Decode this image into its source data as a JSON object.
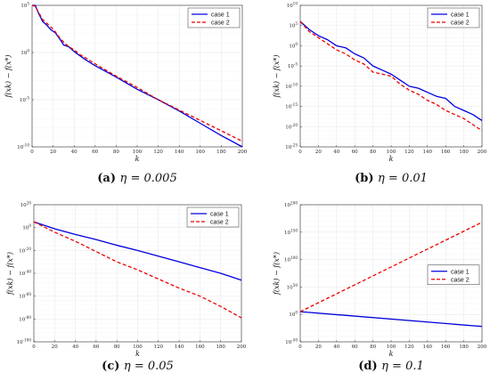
{
  "colors": {
    "case1": "#0000dd",
    "case2": "#ee0000"
  },
  "chart_data": [
    {
      "type": "line",
      "caption_tag": "(a)",
      "caption_text": "η = 0.005",
      "xlabel": "k",
      "ylabel": "f(xk) − f(x*)",
      "xlim": [
        0,
        200
      ],
      "yscale": "log",
      "ylim_exp": [
        -10,
        5
      ],
      "xticks": [
        "0",
        "20",
        "40",
        "60",
        "80",
        "100",
        "120",
        "140",
        "160",
        "180",
        "200"
      ],
      "yticks": [
        {
          "base": "10",
          "exp": "-10",
          "e": -10
        },
        {
          "base": "10",
          "exp": "-5",
          "e": -5
        },
        {
          "base": "10",
          "exp": "0",
          "e": 0
        },
        {
          "base": "10",
          "exp": "5",
          "e": 5
        }
      ],
      "legend_position": "top-right",
      "series": [
        {
          "name": "case 1",
          "style": "solid",
          "x": [
            0,
            3,
            6,
            10,
            14,
            18,
            22,
            26,
            30,
            35,
            40,
            45,
            50,
            60,
            80,
            100,
            120,
            140,
            160,
            180,
            200
          ],
          "y_exp": [
            5,
            5,
            4.2,
            3.3,
            2.9,
            2.4,
            2.1,
            1.5,
            0.8,
            0.6,
            0.1,
            -0.3,
            -0.7,
            -1.4,
            -2.6,
            -3.9,
            -5.0,
            -6.2,
            -7.5,
            -8.8,
            -10
          ]
        },
        {
          "name": "case 2",
          "style": "dashed",
          "x": [
            0,
            3,
            6,
            10,
            14,
            18,
            22,
            26,
            30,
            35,
            40,
            45,
            50,
            60,
            80,
            100,
            120,
            140,
            160,
            180,
            200
          ],
          "y_exp": [
            5,
            4.9,
            4.3,
            3.5,
            3.1,
            2.7,
            2.2,
            1.6,
            1.1,
            0.6,
            0.3,
            -0.2,
            -0.5,
            -1.2,
            -2.5,
            -3.7,
            -5.0,
            -6.1,
            -7.2,
            -8.3,
            -9.4
          ]
        }
      ]
    },
    {
      "type": "line",
      "caption_tag": "(b)",
      "caption_text": "η = 0.01",
      "xlabel": "k",
      "ylabel": "f(xk) − f(x*)",
      "xlim": [
        0,
        200
      ],
      "yscale": "log",
      "ylim_exp": [
        -25,
        10
      ],
      "xticks": [
        "0",
        "20",
        "40",
        "60",
        "80",
        "100",
        "120",
        "140",
        "160",
        "180",
        "200"
      ],
      "yticks": [
        {
          "base": "10",
          "exp": "-25",
          "e": -25
        },
        {
          "base": "10",
          "exp": "-20",
          "e": -20
        },
        {
          "base": "10",
          "exp": "-15",
          "e": -15
        },
        {
          "base": "10",
          "exp": "-10",
          "e": -10
        },
        {
          "base": "10",
          "exp": "-5",
          "e": -5
        },
        {
          "base": "10",
          "exp": "0",
          "e": 0
        },
        {
          "base": "10",
          "exp": "5",
          "e": 5
        },
        {
          "base": "10",
          "exp": "10",
          "e": 10
        }
      ],
      "legend_position": "top-right",
      "series": [
        {
          "name": "case 1",
          "style": "solid",
          "x": [
            0,
            10,
            20,
            30,
            40,
            50,
            60,
            70,
            80,
            90,
            100,
            110,
            120,
            130,
            140,
            150,
            160,
            170,
            180,
            190,
            200
          ],
          "y_exp": [
            6,
            4,
            2.5,
            1.5,
            0,
            -0.5,
            -2,
            -3,
            -5,
            -6,
            -7,
            -8.5,
            -10,
            -10.5,
            -11.5,
            -12.5,
            -13,
            -15,
            -16,
            -17,
            -18.5
          ]
        },
        {
          "name": "case 2",
          "style": "dashed",
          "x": [
            0,
            10,
            20,
            30,
            40,
            50,
            60,
            70,
            80,
            90,
            100,
            110,
            120,
            130,
            140,
            150,
            160,
            170,
            180,
            190,
            200
          ],
          "y_exp": [
            6,
            3.5,
            2,
            0.5,
            -1,
            -2,
            -3.5,
            -4.5,
            -6.5,
            -7,
            -7.5,
            -9.5,
            -11,
            -12,
            -13.5,
            -14.5,
            -16,
            -17,
            -18,
            -19.5,
            -21
          ]
        }
      ]
    },
    {
      "type": "line",
      "caption_tag": "(c)",
      "caption_text": "η = 0.05",
      "xlabel": "k",
      "ylabel": "f(xk) − f(x*)",
      "xlim": [
        0,
        200
      ],
      "yscale": "log",
      "ylim_exp": [
        -100,
        20
      ],
      "xticks": [
        "0",
        "20",
        "40",
        "60",
        "80",
        "100",
        "120",
        "140",
        "160",
        "180",
        "200"
      ],
      "yticks": [
        {
          "base": "10",
          "exp": "-100",
          "e": -100
        },
        {
          "base": "10",
          "exp": "-80",
          "e": -80
        },
        {
          "base": "10",
          "exp": "-60",
          "e": -60
        },
        {
          "base": "10",
          "exp": "-40",
          "e": -40
        },
        {
          "base": "10",
          "exp": "-20",
          "e": -20
        },
        {
          "base": "10",
          "exp": "0",
          "e": 0
        },
        {
          "base": "10",
          "exp": "20",
          "e": 20
        }
      ],
      "legend_position": "top-right",
      "series": [
        {
          "name": "case 1",
          "style": "solid",
          "x": [
            0,
            20,
            40,
            60,
            80,
            100,
            120,
            140,
            160,
            180,
            200
          ],
          "y_exp": [
            5,
            -1,
            -6,
            -10.5,
            -15.5,
            -20,
            -25,
            -30,
            -35,
            -40,
            -46
          ]
        },
        {
          "name": "case 2",
          "style": "dashed",
          "x": [
            0,
            20,
            40,
            60,
            80,
            100,
            120,
            140,
            160,
            180,
            200
          ],
          "y_exp": [
            5,
            -4,
            -12,
            -21,
            -30,
            -37,
            -45,
            -53,
            -60,
            -69,
            -79
          ]
        }
      ]
    },
    {
      "type": "line",
      "caption_tag": "(d)",
      "caption_text": "η = 0.1",
      "xlabel": "k",
      "ylabel": "f(xk) − f(x*)",
      "xlim": [
        0,
        200
      ],
      "yscale": "log",
      "ylim_exp": [
        -50,
        200
      ],
      "xticks": [
        "0",
        "20",
        "40",
        "60",
        "80",
        "100",
        "120",
        "140",
        "160",
        "180",
        "200"
      ],
      "yticks": [
        {
          "base": "10",
          "exp": "-50",
          "e": -50
        },
        {
          "base": "10",
          "exp": "0",
          "e": 0
        },
        {
          "base": "10",
          "exp": "50",
          "e": 50
        },
        {
          "base": "10",
          "exp": "100",
          "e": 100
        },
        {
          "base": "10",
          "exp": "150",
          "e": 150
        },
        {
          "base": "10",
          "exp": "200",
          "e": 200
        }
      ],
      "legend_position": "right",
      "series": [
        {
          "name": "case 1",
          "style": "solid",
          "x": [
            0,
            200
          ],
          "y_exp": [
            5,
            -22
          ]
        },
        {
          "name": "case 2",
          "style": "dashed",
          "x": [
            0,
            200
          ],
          "y_exp": [
            5,
            168
          ]
        }
      ]
    }
  ]
}
